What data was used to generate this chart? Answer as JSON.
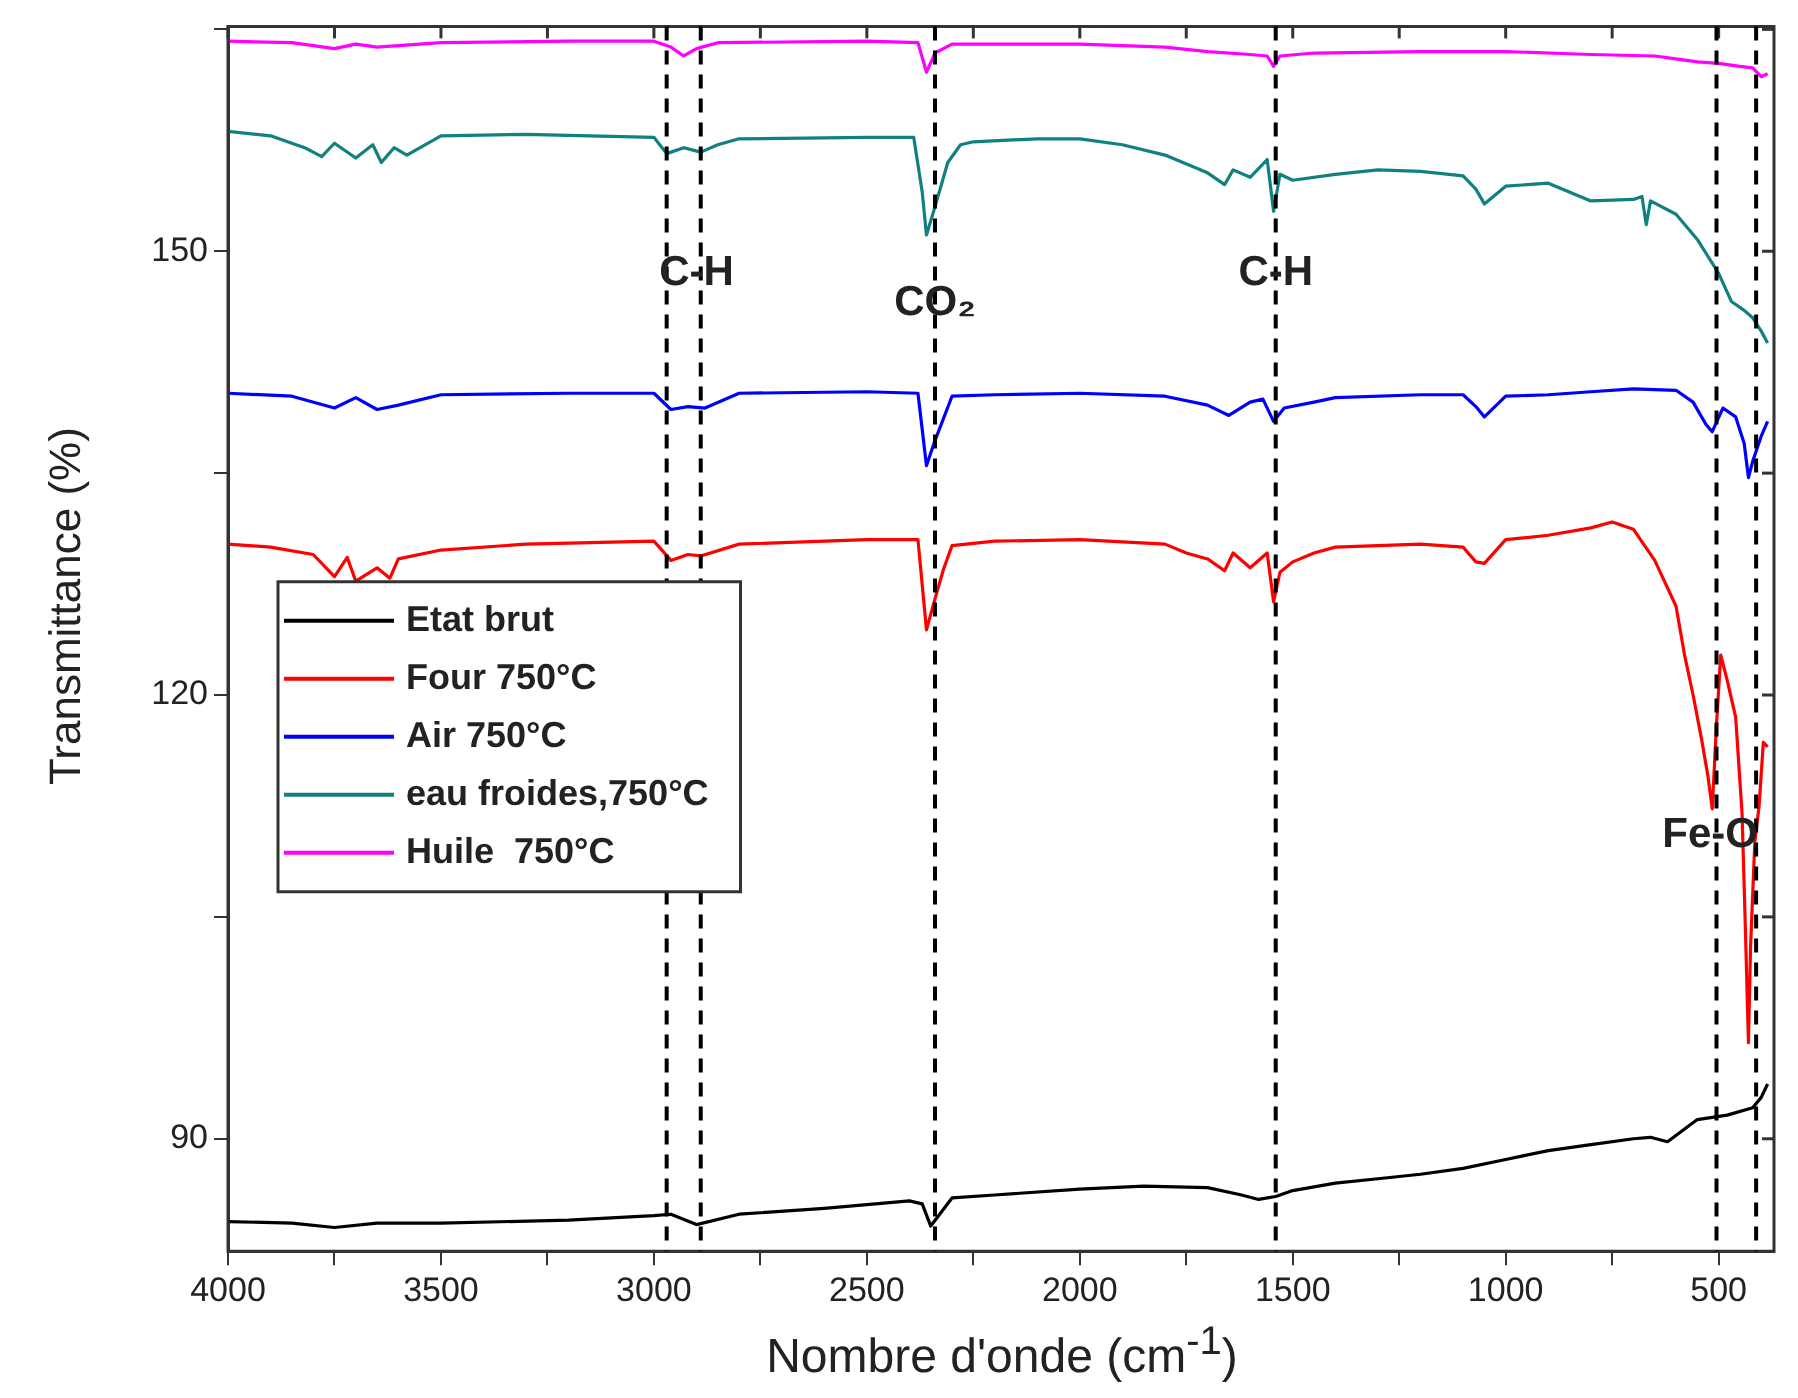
{
  "chart_data": {
    "type": "line",
    "xlabel": "Nombre d'onde (cm$^{-1}$)",
    "ylabel": "Transmittance (%)",
    "xlim": [
      4000,
      370
    ],
    "xticks": [
      4000,
      {
        "value": 3750,
        "label": null
      },
      3500,
      {
        "value": 3250,
        "label": null
      },
      3000,
      {
        "value": 2750,
        "label": null
      },
      2500,
      {
        "value": 2250,
        "label": null
      },
      2000,
      {
        "value": 1750,
        "label": null
      },
      1500,
      {
        "value": 1250,
        "label": null
      },
      1000,
      {
        "value": 750,
        "label": null
      },
      500
    ],
    "ylim": [
      82.4,
      165.2
    ],
    "yticks": [
      {
        "value": 90,
        "label": "90"
      },
      {
        "value": 105,
        "label": null
      },
      {
        "value": 120,
        "label": "120"
      },
      {
        "value": 135,
        "label": null
      },
      {
        "value": 150,
        "label": "150"
      },
      {
        "value": 165,
        "label": null
      }
    ],
    "grid": false,
    "legend": "left",
    "marker": "none",
    "line_style": "solid",
    "series": [
      {
        "name": "Etat brut",
        "color": "#000000",
        "x": [
          4000,
          3850,
          3750,
          3650,
          3500,
          3200,
          3000,
          2960,
          2900,
          2800,
          2600,
          2400,
          2370,
          2350,
          2300,
          2200,
          2000,
          1850,
          1700,
          1620,
          1580,
          1540,
          1500,
          1400,
          1300,
          1200,
          1100,
          1000,
          900,
          800,
          700,
          660,
          620,
          550,
          480,
          420,
          400,
          385
        ],
        "values": [
          84.4,
          84.3,
          84.0,
          84.3,
          84.3,
          84.5,
          84.8,
          84.9,
          84.2,
          84.9,
          85.3,
          85.8,
          85.6,
          84.1,
          86.0,
          86.2,
          86.6,
          86.8,
          86.7,
          86.2,
          85.9,
          86.1,
          86.5,
          87.0,
          87.3,
          87.6,
          88.0,
          88.6,
          89.2,
          89.6,
          90.0,
          90.1,
          89.8,
          91.3,
          91.6,
          92.1,
          92.8,
          93.7
        ]
      },
      {
        "name": "Four 750°C",
        "color": "#ff0000",
        "x": [
          4000,
          3900,
          3800,
          3750,
          3720,
          3700,
          3650,
          3620,
          3600,
          3500,
          3300,
          3000,
          2960,
          2920,
          2890,
          2800,
          2500,
          2380,
          2360,
          2340,
          2320,
          2300,
          2200,
          2000,
          1800,
          1750,
          1700,
          1660,
          1640,
          1600,
          1560,
          1545,
          1530,
          1500,
          1450,
          1400,
          1200,
          1100,
          1070,
          1050,
          1000,
          900,
          800,
          750,
          700,
          650,
          600,
          580,
          560,
          540,
          525,
          515,
          505,
          495,
          480,
          460,
          445,
          437,
          430,
          425,
          415,
          405,
          395,
          385
        ],
        "values": [
          130.2,
          130.0,
          129.5,
          128.0,
          129.3,
          127.7,
          128.6,
          127.9,
          129.2,
          129.8,
          130.2,
          130.4,
          129.1,
          129.5,
          129.4,
          130.2,
          130.5,
          130.5,
          124.4,
          126.5,
          128.5,
          130.1,
          130.4,
          130.5,
          130.2,
          129.6,
          129.2,
          128.4,
          129.6,
          128.6,
          129.6,
          126.3,
          128.3,
          129.0,
          129.6,
          130.0,
          130.2,
          130.0,
          129.0,
          128.9,
          130.5,
          130.8,
          131.3,
          131.7,
          131.2,
          129.1,
          126.0,
          122.7,
          120.0,
          117.0,
          114.5,
          112.3,
          118.0,
          122.7,
          121.0,
          118.5,
          112.0,
          104.0,
          96.5,
          103.0,
          110.1,
          112.5,
          116.8,
          116.5
        ]
      },
      {
        "name": "Air 750°C",
        "color": "#0000ff",
        "x": [
          4000,
          3850,
          3750,
          3700,
          3650,
          3600,
          3500,
          3200,
          3000,
          2960,
          2920,
          2880,
          2800,
          2500,
          2380,
          2360,
          2340,
          2300,
          2200,
          2000,
          1800,
          1700,
          1650,
          1600,
          1570,
          1545,
          1520,
          1450,
          1400,
          1200,
          1100,
          1070,
          1050,
          1000,
          900,
          800,
          700,
          600,
          560,
          530,
          515,
          490,
          460,
          440,
          430,
          420,
          400,
          385
        ],
        "values": [
          140.4,
          140.2,
          139.4,
          140.1,
          139.3,
          139.6,
          140.3,
          140.4,
          140.4,
          139.3,
          139.5,
          139.4,
          140.4,
          140.5,
          140.4,
          135.5,
          137.2,
          140.2,
          140.3,
          140.4,
          140.2,
          139.6,
          138.9,
          139.8,
          140.0,
          138.5,
          139.4,
          139.8,
          140.1,
          140.3,
          140.3,
          139.5,
          138.8,
          140.2,
          140.3,
          140.5,
          140.7,
          140.6,
          139.8,
          138.3,
          137.8,
          139.4,
          138.8,
          137.0,
          134.7,
          135.8,
          137.5,
          138.5
        ]
      },
      {
        "name": "eau froides,750°C",
        "color": "#108080",
        "x": [
          4000,
          3900,
          3820,
          3780,
          3750,
          3700,
          3660,
          3640,
          3610,
          3580,
          3500,
          3300,
          3000,
          2970,
          2930,
          2890,
          2850,
          2800,
          2500,
          2390,
          2370,
          2360,
          2340,
          2310,
          2280,
          2250,
          2100,
          2000,
          1900,
          1800,
          1700,
          1660,
          1640,
          1600,
          1560,
          1545,
          1530,
          1500,
          1400,
          1300,
          1200,
          1100,
          1070,
          1050,
          1000,
          900,
          800,
          700,
          680,
          670,
          660,
          600,
          550,
          500,
          470,
          440,
          420,
          400,
          385
        ],
        "values": [
          158.1,
          157.8,
          157.0,
          156.4,
          157.3,
          156.3,
          157.2,
          156.0,
          157.0,
          156.5,
          157.8,
          157.9,
          157.7,
          156.6,
          157.0,
          156.7,
          157.2,
          157.6,
          157.7,
          157.7,
          154.0,
          151.1,
          153.0,
          156.0,
          157.2,
          157.4,
          157.6,
          157.6,
          157.2,
          156.5,
          155.3,
          154.5,
          155.5,
          155.0,
          156.2,
          152.7,
          155.2,
          154.8,
          155.2,
          155.5,
          155.4,
          155.1,
          154.2,
          153.2,
          154.4,
          154.6,
          153.4,
          153.5,
          153.7,
          151.8,
          153.4,
          152.5,
          150.8,
          148.5,
          146.6,
          146.0,
          145.5,
          144.6,
          143.8
        ]
      },
      {
        "name": "Huile  750°C",
        "color": "#ff00ff",
        "x": [
          4000,
          3850,
          3750,
          3700,
          3650,
          3500,
          3200,
          3000,
          2960,
          2930,
          2900,
          2850,
          2500,
          2380,
          2360,
          2340,
          2300,
          2000,
          1800,
          1700,
          1600,
          1560,
          1545,
          1530,
          1450,
          1200,
          1000,
          800,
          650,
          600,
          550,
          500,
          450,
          420,
          400,
          385
        ],
        "values": [
          164.2,
          164.1,
          163.7,
          164.0,
          163.8,
          164.1,
          164.2,
          164.2,
          163.8,
          163.2,
          163.7,
          164.1,
          164.2,
          164.1,
          162.1,
          163.4,
          164.0,
          164.0,
          163.8,
          163.5,
          163.3,
          163.2,
          162.5,
          163.2,
          163.4,
          163.5,
          163.5,
          163.3,
          163.2,
          163.0,
          162.8,
          162.7,
          162.5,
          162.4,
          161.8,
          162.0
        ]
      }
    ],
    "ref_lines": [
      {
        "axis": "x",
        "value": 2970,
        "line_style": "dashed",
        "color": "#000000"
      },
      {
        "axis": "x",
        "value": 2890,
        "line_style": "dashed",
        "color": "#000000"
      },
      {
        "axis": "x",
        "value": 2340,
        "line_style": "dashed",
        "color": "#000000"
      },
      {
        "axis": "x",
        "value": 1540,
        "line_style": "dashed",
        "color": "#000000"
      },
      {
        "axis": "x",
        "value": 505,
        "line_style": "dashed",
        "color": "#000000"
      },
      {
        "axis": "x",
        "value": 412,
        "line_style": "dashed",
        "color": "#000000"
      }
    ],
    "annotations": [
      {
        "text": "C-H",
        "x": 2900,
        "y": 148.5
      },
      {
        "text": "CO₂",
        "x": 2340,
        "y": 146.5
      },
      {
        "text": "C-H",
        "x": 1540,
        "y": 148.5
      },
      {
        "text": "Fe-O",
        "x": 520,
        "y": 110.5
      }
    ]
  }
}
